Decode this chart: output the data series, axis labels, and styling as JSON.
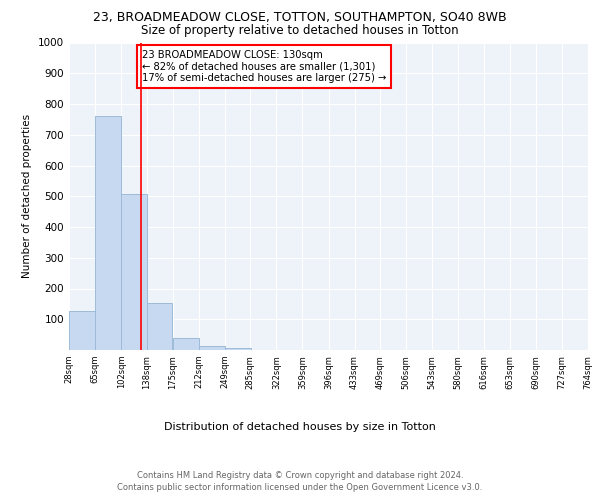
{
  "title1": "23, BROADMEADOW CLOSE, TOTTON, SOUTHAMPTON, SO40 8WB",
  "title2": "Size of property relative to detached houses in Totton",
  "xlabel": "Distribution of detached houses by size in Totton",
  "ylabel": "Number of detached properties",
  "bin_edges": [
    28,
    65,
    102,
    138,
    175,
    212,
    249,
    285,
    322,
    359,
    396,
    433,
    469,
    506,
    543,
    580,
    616,
    653,
    690,
    727,
    764
  ],
  "bin_counts": [
    127,
    762,
    507,
    152,
    38,
    13,
    8,
    0,
    0,
    0,
    0,
    0,
    0,
    0,
    0,
    0,
    0,
    0,
    0,
    0
  ],
  "bar_color": "#c6d9f0",
  "bar_edge_color": "#9dbbd8",
  "red_line_x": 130,
  "annotation_text": "23 BROADMEADOW CLOSE: 130sqm\n← 82% of detached houses are smaller (1,301)\n17% of semi-detached houses are larger (275) →",
  "annotation_box_color": "white",
  "annotation_box_edge_color": "red",
  "red_line_color": "red",
  "ylim": [
    0,
    1000
  ],
  "yticks": [
    0,
    100,
    200,
    300,
    400,
    500,
    600,
    700,
    800,
    900,
    1000
  ],
  "tick_labels": [
    "28sqm",
    "65sqm",
    "102sqm",
    "138sqm",
    "175sqm",
    "212sqm",
    "249sqm",
    "285sqm",
    "322sqm",
    "359sqm",
    "396sqm",
    "433sqm",
    "469sqm",
    "506sqm",
    "543sqm",
    "580sqm",
    "616sqm",
    "653sqm",
    "690sqm",
    "727sqm",
    "764sqm"
  ],
  "footer_text1": "Contains HM Land Registry data © Crown copyright and database right 2024.",
  "footer_text2": "Contains public sector information licensed under the Open Government Licence v3.0.",
  "background_color": "#eef2f9"
}
